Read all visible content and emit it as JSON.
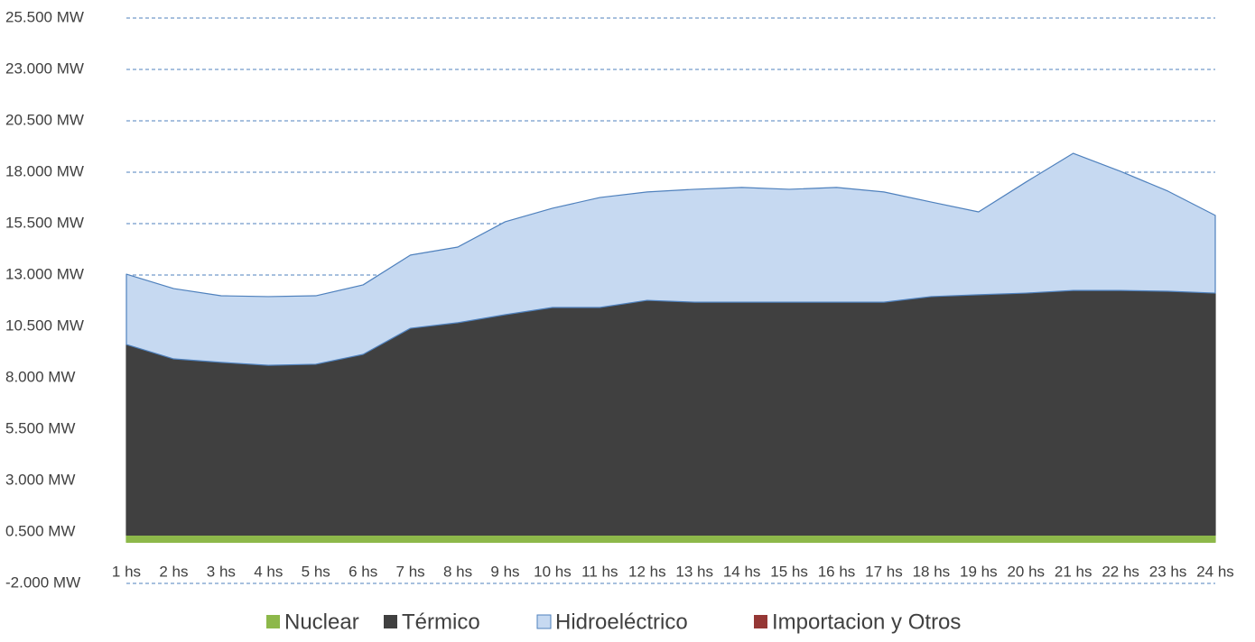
{
  "chart_data": {
    "type": "stacked_area",
    "categories": [
      "1 hs",
      "2 hs",
      "3 hs",
      "4 hs",
      "5 hs",
      "6 hs",
      "7 hs",
      "8 hs",
      "9 hs",
      "10 hs",
      "11 hs",
      "12 hs",
      "13 hs",
      "14 hs",
      "15 hs",
      "16 hs",
      "17 hs",
      "18 hs",
      "19 hs",
      "20 hs",
      "21 hs",
      "22 hs",
      "23 hs",
      "24 hs"
    ],
    "series": [
      {
        "name": "Nuclear",
        "color": "#8db84a",
        "values": [
          350,
          350,
          350,
          350,
          350,
          350,
          350,
          350,
          350,
          350,
          350,
          350,
          350,
          350,
          350,
          350,
          350,
          350,
          350,
          350,
          350,
          350,
          350,
          350
        ]
      },
      {
        "name": "Térmico",
        "color": "#404040",
        "values": [
          9270,
          8570,
          8400,
          8260,
          8310,
          8790,
          10060,
          10330,
          10720,
          11070,
          11070,
          11420,
          11330,
          11330,
          11330,
          11330,
          11330,
          11600,
          11690,
          11770,
          11900,
          11900,
          11860,
          11770
        ]
      },
      {
        "name": "Hidroeléctrico",
        "color": "#c6d9f1",
        "values": [
          3420,
          3420,
          3240,
          3340,
          3330,
          3380,
          3560,
          3680,
          4520,
          4830,
          5350,
          5270,
          5490,
          5580,
          5490,
          5580,
          5360,
          4600,
          4030,
          5400,
          6670,
          5790,
          4870,
          3780
        ]
      },
      {
        "name": "Importacion y Otros",
        "color": "#953735",
        "values": [
          0,
          0,
          0,
          0,
          0,
          0,
          0,
          0,
          0,
          0,
          0,
          0,
          0,
          0,
          0,
          0,
          0,
          0,
          0,
          0,
          0,
          0,
          0,
          0
        ]
      }
    ],
    "ylim": [
      -2000,
      25500
    ],
    "yticks": [
      {
        "value": -2000,
        "label": "-2.000 MW"
      },
      {
        "value": 500,
        "label": "0.500 MW"
      },
      {
        "value": 3000,
        "label": "3.000 MW"
      },
      {
        "value": 5500,
        "label": "5.500 MW"
      },
      {
        "value": 8000,
        "label": "8.000 MW"
      },
      {
        "value": 10500,
        "label": "10.500 MW"
      },
      {
        "value": 13000,
        "label": "13.000 MW"
      },
      {
        "value": 15500,
        "label": "15.500 MW"
      },
      {
        "value": 18000,
        "label": "18.000 MW"
      },
      {
        "value": 20500,
        "label": "20.500 MW"
      },
      {
        "value": 23000,
        "label": "23.000 MW"
      },
      {
        "value": 25500,
        "label": "25.500 MW"
      }
    ],
    "grid": true,
    "legend": "bottom"
  }
}
